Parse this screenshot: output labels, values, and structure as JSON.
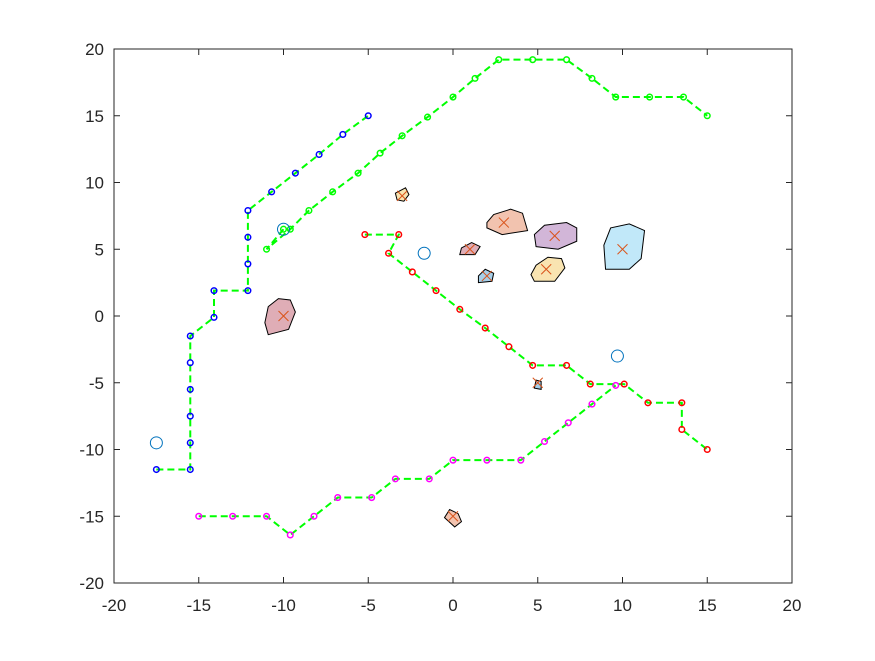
{
  "chart_data": {
    "type": "scatter",
    "title": "",
    "xlabel": "",
    "ylabel": "",
    "xlim": [
      -20,
      20
    ],
    "ylim": [
      -20,
      20
    ],
    "xticks": [
      "-20",
      "-15",
      "-10",
      "-5",
      "0",
      "5",
      "10",
      "15",
      "20"
    ],
    "yticks": [
      "20",
      "15",
      "10",
      "5",
      "0",
      "-5",
      "-10",
      "-15",
      "-20"
    ],
    "xtick_values": [
      -20,
      -15,
      -10,
      -5,
      0,
      5,
      10,
      15,
      20
    ],
    "ytick_values": [
      20,
      15,
      10,
      5,
      0,
      -5,
      -10,
      -15,
      -20
    ],
    "grid": false,
    "path_line_color": "#00ff00",
    "series": [
      {
        "color": "#0000ff",
        "points": [
          [
            -17.5,
            -11.5
          ],
          [
            -15.5,
            -11.5
          ],
          [
            -15.5,
            -9.5
          ],
          [
            -15.5,
            -7.5
          ],
          [
            -15.5,
            -5.5
          ],
          [
            -15.5,
            -3.5
          ],
          [
            -15.5,
            -1.5
          ],
          [
            -14.1,
            -0.1
          ],
          [
            -14.1,
            1.9
          ],
          [
            -12.1,
            1.9
          ],
          [
            -12.1,
            3.9
          ],
          [
            -12.1,
            5.9
          ],
          [
            -12.1,
            7.9
          ],
          [
            -10.7,
            9.3
          ],
          [
            -9.3,
            10.7
          ],
          [
            -7.9,
            12.1
          ],
          [
            -6.5,
            13.6
          ],
          [
            -5.0,
            15.0
          ]
        ]
      },
      {
        "color": "#00ff00",
        "points": [
          [
            -10,
            6.5
          ],
          [
            -11.0,
            5.0
          ],
          [
            -9.6,
            6.5
          ],
          [
            -8.5,
            7.9
          ],
          [
            -7.1,
            9.3
          ],
          [
            -5.6,
            10.7
          ],
          [
            -4.3,
            12.2
          ],
          [
            -3.0,
            13.5
          ],
          [
            -1.5,
            14.9
          ],
          [
            0,
            16.4
          ],
          [
            1.3,
            17.8
          ],
          [
            2.7,
            19.2
          ],
          [
            4.7,
            19.2
          ],
          [
            6.7,
            19.2
          ],
          [
            8.2,
            17.8
          ],
          [
            9.6,
            16.4
          ],
          [
            11.6,
            16.4
          ],
          [
            13.6,
            16.4
          ],
          [
            15.0,
            15.0
          ]
        ]
      },
      {
        "color": "#ff0000",
        "points": [
          [
            -5.2,
            6.1
          ],
          [
            -3.2,
            6.1
          ],
          [
            -3.8,
            4.7
          ],
          [
            -2.4,
            3.3
          ],
          [
            -1.0,
            1.9
          ],
          [
            0.4,
            0.5
          ],
          [
            1.9,
            -0.9
          ],
          [
            3.3,
            -2.3
          ],
          [
            4.7,
            -3.7
          ],
          [
            6.7,
            -3.7
          ],
          [
            8.1,
            -5.1
          ],
          [
            10.1,
            -5.1
          ],
          [
            11.5,
            -6.5
          ],
          [
            13.5,
            -6.5
          ],
          [
            13.5,
            -8.5
          ],
          [
            15.0,
            -10.0
          ]
        ]
      },
      {
        "color": "#ff00ff",
        "points": [
          [
            -15.0,
            -15.0
          ],
          [
            -13.0,
            -15.0
          ],
          [
            -11.0,
            -15.0
          ],
          [
            -9.6,
            -16.4
          ],
          [
            -8.2,
            -15.0
          ],
          [
            -6.8,
            -13.6
          ],
          [
            -4.8,
            -13.6
          ],
          [
            -3.4,
            -12.2
          ],
          [
            -1.4,
            -12.2
          ],
          [
            0,
            -10.8
          ],
          [
            2.0,
            -10.8
          ],
          [
            4.0,
            -10.8
          ],
          [
            5.4,
            -9.4
          ],
          [
            6.8,
            -8.0
          ],
          [
            8.2,
            -6.6
          ],
          [
            9.6,
            -5.2
          ]
        ]
      }
    ],
    "markers_circle": {
      "color": "#0072bd",
      "points": [
        [
          -17.5,
          -9.5
        ],
        [
          -10.0,
          6.5
        ],
        [
          -1.7,
          4.7
        ],
        [
          9.7,
          -3.0
        ]
      ]
    },
    "obstacles": [
      {
        "fill": "#a2142f",
        "center": [
          -10,
          0
        ],
        "poly": [
          [
            -10.9,
            -1.4
          ],
          [
            -9.7,
            -1.0
          ],
          [
            -9.3,
            0.3
          ],
          [
            -9.6,
            1.2
          ],
          [
            -10.3,
            1.3
          ],
          [
            -10.9,
            0.7
          ],
          [
            -11.1,
            -0.5
          ]
        ]
      },
      {
        "fill": "#edb120",
        "center": [
          -3,
          9
        ],
        "poly": [
          [
            -3.4,
            9.2
          ],
          [
            -2.8,
            9.6
          ],
          [
            -2.6,
            9.1
          ],
          [
            -2.9,
            8.6
          ],
          [
            -3.3,
            8.7
          ]
        ]
      },
      {
        "fill": "#d95319",
        "center": [
          3,
          7
        ],
        "poly": [
          [
            2.0,
            6.6
          ],
          [
            2.9,
            6.1
          ],
          [
            4.4,
            6.4
          ],
          [
            4.1,
            7.7
          ],
          [
            3.4,
            8.0
          ],
          [
            2.4,
            7.6
          ],
          [
            2.0,
            7.0
          ]
        ]
      },
      {
        "fill": "#7e2f8e",
        "center": [
          6,
          6
        ],
        "poly": [
          [
            4.9,
            5.2
          ],
          [
            6.2,
            5.0
          ],
          [
            7.3,
            5.6
          ],
          [
            7.3,
            6.6
          ],
          [
            6.7,
            7.0
          ],
          [
            5.4,
            6.8
          ],
          [
            4.8,
            6.1
          ]
        ]
      },
      {
        "fill": "#4dbeee",
        "center": [
          10,
          5
        ],
        "poly": [
          [
            9.0,
            3.5
          ],
          [
            10.4,
            3.5
          ],
          [
            11.1,
            4.3
          ],
          [
            11.3,
            6.4
          ],
          [
            10.4,
            6.9
          ],
          [
            9.3,
            6.6
          ],
          [
            8.9,
            5.3
          ]
        ]
      },
      {
        "fill": "#a2142f",
        "center": [
          1,
          5
        ],
        "poly": [
          [
            0.4,
            4.6
          ],
          [
            1.3,
            4.6
          ],
          [
            1.6,
            5.2
          ],
          [
            1.1,
            5.5
          ],
          [
            0.5,
            5.1
          ]
        ]
      },
      {
        "fill": "#0072bd",
        "center": [
          2,
          3
        ],
        "poly": [
          [
            1.5,
            2.5
          ],
          [
            2.3,
            2.6
          ],
          [
            2.4,
            3.2
          ],
          [
            1.9,
            3.5
          ],
          [
            1.5,
            3.0
          ]
        ]
      },
      {
        "fill": "#edb120",
        "center": [
          5.5,
          3.5
        ],
        "poly": [
          [
            4.8,
            2.6
          ],
          [
            6.0,
            2.6
          ],
          [
            6.6,
            3.6
          ],
          [
            6.4,
            4.3
          ],
          [
            5.6,
            4.4
          ],
          [
            4.9,
            3.8
          ],
          [
            4.6,
            3.1
          ]
        ]
      },
      {
        "fill": "#0072bd",
        "center": [
          5,
          -5
        ],
        "poly": [
          [
            4.8,
            -5.4
          ],
          [
            5.2,
            -5.5
          ],
          [
            5.2,
            -4.9
          ],
          [
            4.9,
            -4.8
          ]
        ]
      },
      {
        "fill": "#d95319",
        "center": [
          0,
          -15
        ],
        "poly": [
          [
            -0.5,
            -15.1
          ],
          [
            0.1,
            -15.8
          ],
          [
            0.5,
            -15.4
          ],
          [
            0.3,
            -14.8
          ],
          [
            -0.2,
            -14.5
          ]
        ]
      }
    ]
  }
}
